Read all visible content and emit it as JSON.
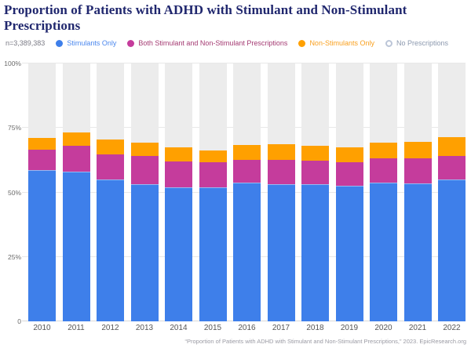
{
  "title": "Proportion of Patients with ADHD with Stimulant and Non-Stimulant Prescriptions",
  "legend": {
    "n_label": "n=3,389,383",
    "items": [
      {
        "label": "Stimulants Only",
        "color": "#3E7FEA",
        "text_color": "#4A87EE",
        "filled": true
      },
      {
        "label": "Both Stimulant and Non-Stimulant Prescriptions",
        "color": "#C53C9C",
        "text_color": "#A43A72",
        "filled": true
      },
      {
        "label": "Non-Stimulants Only",
        "color": "#FFA000",
        "text_color": "#F9A01F",
        "filled": true
      },
      {
        "label": "No Prescriptions",
        "color": "#BCC6D8",
        "text_color": "#8B98AE",
        "filled": false
      }
    ]
  },
  "chart_data": {
    "type": "bar",
    "stacked": true,
    "title": "Proportion of Patients with ADHD with Stimulant and Non-Stimulant Prescriptions",
    "categories": [
      "2010",
      "2011",
      "2012",
      "2013",
      "2014",
      "2015",
      "2016",
      "2017",
      "2018",
      "2019",
      "2020",
      "2021",
      "2022"
    ],
    "series": [
      {
        "name": "Stimulants Only",
        "color": "#3E7FEA",
        "values": [
          58.8,
          58.2,
          54.9,
          53.1,
          51.9,
          52.1,
          53.9,
          53.1,
          53.1,
          52.7,
          53.7,
          53.4,
          54.9
        ]
      },
      {
        "name": "Both Stimulant and Non-Stimulant Prescriptions",
        "color": "#C53C9C",
        "values": [
          7.7,
          9.9,
          9.9,
          11.1,
          10.1,
          9.6,
          8.8,
          9.6,
          9.3,
          9.0,
          9.5,
          9.8,
          9.3
        ]
      },
      {
        "name": "Non-Stimulants Only",
        "color": "#FFA000",
        "values": [
          4.6,
          5.3,
          5.6,
          5.1,
          5.4,
          4.7,
          5.7,
          6.1,
          5.7,
          5.9,
          6.1,
          6.4,
          7.4
        ]
      },
      {
        "name": "No Prescriptions",
        "color": "#ECECEC",
        "values": [
          28.9,
          26.6,
          29.6,
          30.7,
          32.6,
          33.6,
          31.6,
          31.2,
          31.9,
          32.4,
          30.7,
          30.4,
          28.4
        ]
      }
    ],
    "xlabel": "",
    "ylabel": "",
    "ylim": [
      0,
      100
    ],
    "y_ticks": [
      {
        "label": "100%",
        "value": 100
      },
      {
        "label": "75%",
        "value": 75
      },
      {
        "label": "50%",
        "value": 50
      },
      {
        "label": "25%",
        "value": 25
      },
      {
        "label": "0",
        "value": 0
      }
    ],
    "grid": true,
    "legend_position": "top"
  },
  "footer": {
    "citation": "“Proportion of Patients with ADHD with Stimulant and Non-Stimulant Prescriptions,” 2023. EpicResearch.org"
  }
}
